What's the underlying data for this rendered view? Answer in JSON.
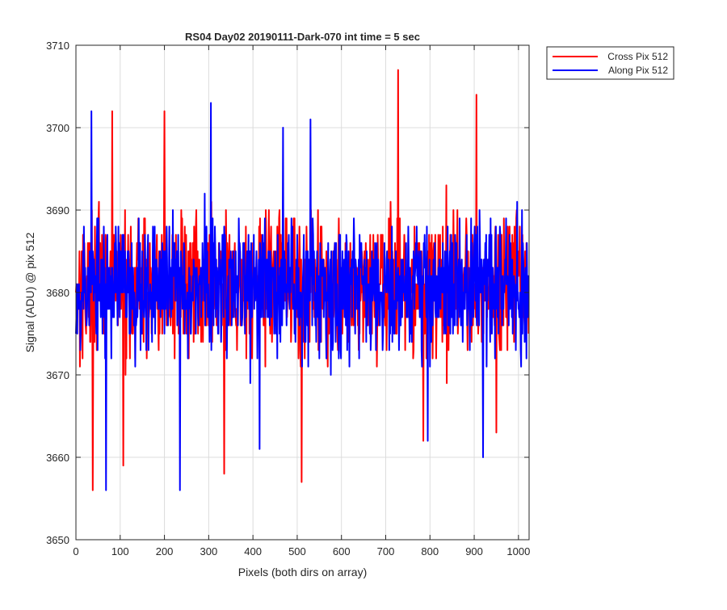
{
  "chart_data": {
    "type": "line",
    "title": "RS04 Day02 20190111-Dark-070 int time = 5 sec",
    "xlabel": "Pixels (both dirs on array)",
    "ylabel": "Signal (ADU) @ pix 512",
    "xlim": [
      0,
      1024
    ],
    "ylim": [
      3650,
      3710
    ],
    "xticks": [
      0,
      100,
      200,
      300,
      400,
      500,
      600,
      700,
      800,
      900,
      1000
    ],
    "yticks": [
      3650,
      3660,
      3670,
      3680,
      3690,
      3700,
      3710
    ],
    "grid": true,
    "legend_location": "outside-top-right",
    "series": [
      {
        "name": "Cross Pix 512",
        "color": "#ff0000",
        "mean": 3681,
        "n_points": 1024,
        "seed": 17,
        "amplitude": 9,
        "notable_points": [
          {
            "x": 38,
            "y": 3656
          },
          {
            "x": 82,
            "y": 3702
          },
          {
            "x": 107,
            "y": 3659
          },
          {
            "x": 200,
            "y": 3702
          },
          {
            "x": 335,
            "y": 3658
          },
          {
            "x": 510,
            "y": 3657
          },
          {
            "x": 728,
            "y": 3707
          },
          {
            "x": 785,
            "y": 3662
          },
          {
            "x": 905,
            "y": 3704
          },
          {
            "x": 950,
            "y": 3663
          }
        ]
      },
      {
        "name": "Along Pix 512",
        "color": "#0000ff",
        "mean": 3681,
        "n_points": 1024,
        "seed": 53,
        "amplitude": 8.5,
        "notable_points": [
          {
            "x": 35,
            "y": 3702
          },
          {
            "x": 68,
            "y": 3656
          },
          {
            "x": 235,
            "y": 3656
          },
          {
            "x": 305,
            "y": 3703
          },
          {
            "x": 415,
            "y": 3661
          },
          {
            "x": 468,
            "y": 3700
          },
          {
            "x": 530,
            "y": 3701
          },
          {
            "x": 795,
            "y": 3662
          },
          {
            "x": 920,
            "y": 3660
          }
        ]
      }
    ]
  }
}
